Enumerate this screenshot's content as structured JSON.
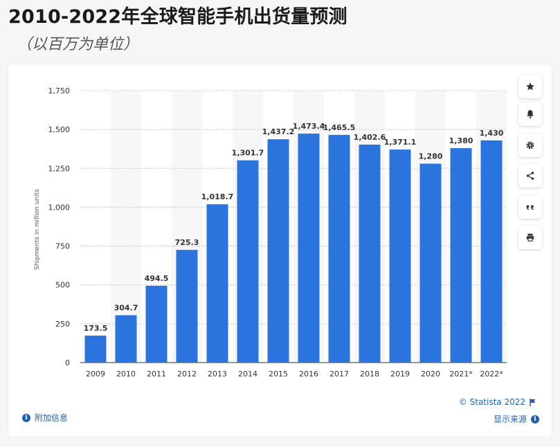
{
  "header": {
    "title": "2010-2022年全球智能手机出货量预测",
    "subtitle": "（以百万为单位）"
  },
  "toolbar": {
    "buttons": [
      {
        "name": "favorite-button",
        "icon": "star-icon"
      },
      {
        "name": "notification-button",
        "icon": "bell-icon"
      },
      {
        "name": "settings-button",
        "icon": "gear-icon"
      },
      {
        "name": "share-button",
        "icon": "share-icon"
      },
      {
        "name": "cite-button",
        "icon": "quote-icon"
      },
      {
        "name": "print-button",
        "icon": "printer-icon"
      }
    ]
  },
  "footer": {
    "additional_info": "附加信息",
    "copyright": "© Statista 2022",
    "show_source": "显示来源"
  },
  "colors": {
    "bar": "#2b74dd",
    "link": "#1f5fb3",
    "band": "#f7f7f9"
  },
  "chart_data": {
    "type": "bar",
    "categories": [
      "2009",
      "2010",
      "2011",
      "2012",
      "2013",
      "2014",
      "2015",
      "2016",
      "2017",
      "2018",
      "2019",
      "2020",
      "2021*",
      "2022*"
    ],
    "values": [
      173.5,
      304.7,
      494.5,
      725.3,
      1018.7,
      1301.7,
      1437.2,
      1473.4,
      1465.5,
      1402.6,
      1371.1,
      1280,
      1380,
      1430
    ],
    "value_labels": [
      "173.5",
      "304.7",
      "494.5",
      "725.3",
      "1,018.7",
      "1,301.7",
      "1,437.2",
      "1,473.4",
      "1,465.5",
      "1,402.6",
      "1,371.1",
      "1,280",
      "1,380",
      "1,430"
    ],
    "ylabel": "Shipments in million units",
    "xlabel": "",
    "ylim": [
      0,
      1750
    ],
    "yticks": [
      0,
      250,
      500,
      750,
      1000,
      1250,
      1500,
      1750
    ],
    "ytick_labels": [
      "0",
      "250",
      "500",
      "750",
      "1,000",
      "1,250",
      "1,500",
      "1,750"
    ],
    "grid": true
  }
}
